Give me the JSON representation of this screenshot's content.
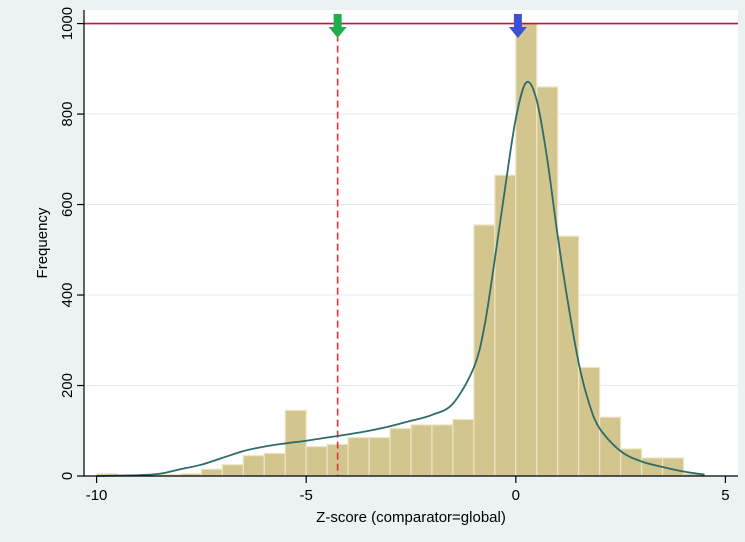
{
  "chart_data": {
    "type": "bar",
    "xlabel": "Z-score (comparator=global)",
    "ylabel": "Frequency",
    "xlim": [
      -10.3,
      5.3
    ],
    "ylim": [
      0,
      1030
    ],
    "x_ticks": [
      -10,
      -5,
      0,
      5
    ],
    "x_tick_labels": [
      "-10",
      "-5",
      "0",
      "5"
    ],
    "y_ticks": [
      0,
      200,
      400,
      600,
      800,
      1000
    ],
    "y_tick_labels": [
      "0",
      "200",
      "400",
      "600",
      "800",
      "1000"
    ],
    "grid": true,
    "legend": "none",
    "bin_width": 0.5,
    "bins": [
      {
        "x0": -10.0,
        "x1": -9.5,
        "y": 5
      },
      {
        "x0": -9.5,
        "x1": -9.0,
        "y": 2
      },
      {
        "x0": -9.0,
        "x1": -8.5,
        "y": 2
      },
      {
        "x0": -8.5,
        "x1": -8.0,
        "y": 3
      },
      {
        "x0": -8.0,
        "x1": -7.5,
        "y": 5
      },
      {
        "x0": -7.5,
        "x1": -7.0,
        "y": 15
      },
      {
        "x0": -7.0,
        "x1": -6.5,
        "y": 25
      },
      {
        "x0": -6.5,
        "x1": -6.0,
        "y": 45
      },
      {
        "x0": -6.0,
        "x1": -5.5,
        "y": 50
      },
      {
        "x0": -5.5,
        "x1": -5.0,
        "y": 145
      },
      {
        "x0": -5.0,
        "x1": -4.5,
        "y": 65
      },
      {
        "x0": -4.5,
        "x1": -4.0,
        "y": 70
      },
      {
        "x0": -4.0,
        "x1": -3.5,
        "y": 85
      },
      {
        "x0": -3.5,
        "x1": -3.0,
        "y": 85
      },
      {
        "x0": -3.0,
        "x1": -2.5,
        "y": 105
      },
      {
        "x0": -2.5,
        "x1": -2.0,
        "y": 113
      },
      {
        "x0": -2.0,
        "x1": -1.5,
        "y": 113
      },
      {
        "x0": -1.5,
        "x1": -1.0,
        "y": 125
      },
      {
        "x0": -1.0,
        "x1": -0.5,
        "y": 555
      },
      {
        "x0": -0.5,
        "x1": 0.0,
        "y": 665
      },
      {
        "x0": 0.0,
        "x1": 0.5,
        "y": 1000
      },
      {
        "x0": 0.5,
        "x1": 1.0,
        "y": 860
      },
      {
        "x0": 1.0,
        "x1": 1.5,
        "y": 530
      },
      {
        "x0": 1.5,
        "x1": 2.0,
        "y": 240
      },
      {
        "x0": 2.0,
        "x1": 2.5,
        "y": 130
      },
      {
        "x0": 2.5,
        "x1": 3.0,
        "y": 60
      },
      {
        "x0": 3.0,
        "x1": 3.5,
        "y": 40
      },
      {
        "x0": 3.5,
        "x1": 4.0,
        "y": 40
      },
      {
        "x0": 4.0,
        "x1": 4.5,
        "y": 5
      }
    ],
    "density_curve": {
      "x": [
        -10.0,
        -9.0,
        -8.5,
        -8.0,
        -7.5,
        -7.0,
        -6.5,
        -6.0,
        -5.5,
        -5.0,
        -4.5,
        -4.0,
        -3.5,
        -3.0,
        -2.5,
        -2.0,
        -1.5,
        -1.0,
        -0.75,
        -0.5,
        -0.25,
        0.0,
        0.25,
        0.5,
        0.75,
        1.0,
        1.25,
        1.5,
        1.75,
        2.0,
        2.5,
        3.0,
        3.5,
        4.0,
        4.5
      ],
      "y": [
        0,
        2,
        5,
        15,
        25,
        40,
        55,
        65,
        72,
        78,
        85,
        92,
        100,
        110,
        122,
        135,
        160,
        240,
        330,
        480,
        640,
        790,
        870,
        830,
        700,
        530,
        380,
        250,
        160,
        105,
        55,
        32,
        20,
        10,
        3
      ]
    },
    "reference_lines": {
      "horizontal_y": 1000,
      "vertical_x": -4.25
    },
    "markers": [
      {
        "x": -4.25,
        "shape": "down-arrow",
        "color": "#1fae4b"
      },
      {
        "x": 0.05,
        "shape": "down-arrow",
        "color": "#3d4fd6"
      }
    ],
    "colors": {
      "bar_fill": "#d2c68e",
      "bar_stroke": "#ece6c6",
      "curve": "#2f6b6b",
      "hline": "#c0143c",
      "vline": "#e0323c",
      "grid": "#e4eef0",
      "plot_bg": "#ffffff",
      "page_bg": "#eaf2f3"
    }
  }
}
